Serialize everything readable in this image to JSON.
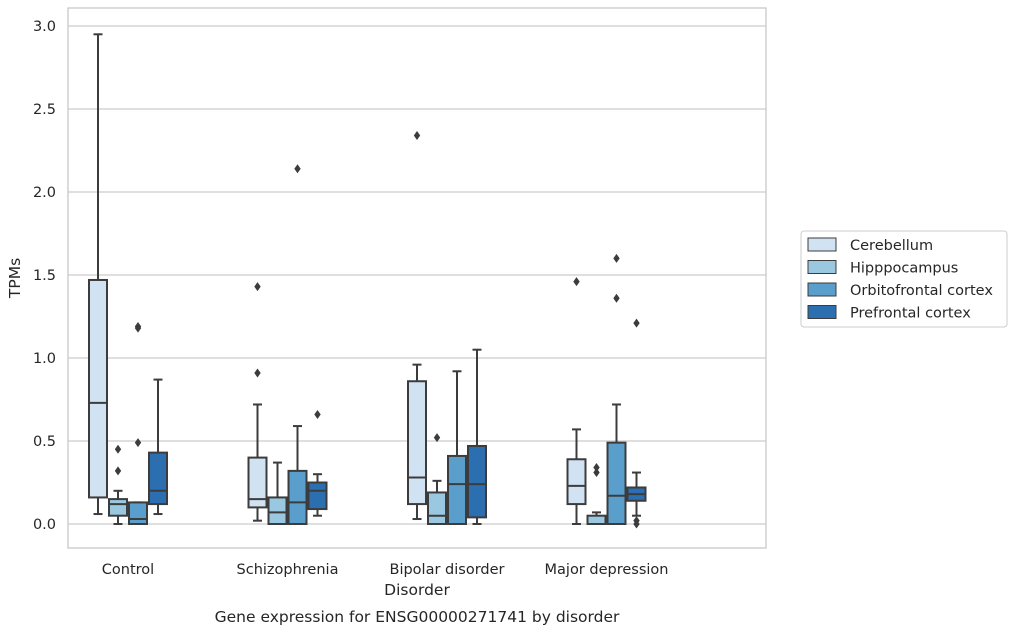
{
  "chart_data": {
    "type": "box",
    "caption": "Gene expression for ENSG00000271741 by disorder",
    "xlabel": "Disorder",
    "ylabel": "TPMs",
    "ylim": [
      -0.14,
      3.1
    ],
    "yticks": [
      0.0,
      0.5,
      1.0,
      1.5,
      2.0,
      2.5,
      3.0
    ],
    "ytick_labels": [
      "0.0",
      "0.5",
      "1.0",
      "1.5",
      "2.0",
      "2.5",
      "3.0"
    ],
    "grid": "horizontal",
    "legend_position": "right",
    "categories": [
      "Control",
      "Schizophrenia",
      "Bipolar disorder",
      "Major depression"
    ],
    "series": [
      {
        "name": "Cerebellum",
        "color": "#d1e2f2",
        "boxes": [
          {
            "whislo": 0.06,
            "q1": 0.16,
            "med": 0.73,
            "q3": 1.47,
            "whishi": 2.95,
            "fliers": []
          },
          {
            "whislo": 0.02,
            "q1": 0.1,
            "med": 0.15,
            "q3": 0.4,
            "whishi": 0.72,
            "fliers": [
              0.91,
              1.43
            ]
          },
          {
            "whislo": 0.03,
            "q1": 0.12,
            "med": 0.28,
            "q3": 0.86,
            "whishi": 0.96,
            "fliers": [
              2.34
            ]
          },
          {
            "whislo": 0.0,
            "q1": 0.12,
            "med": 0.23,
            "q3": 0.39,
            "whishi": 0.57,
            "fliers": [
              1.46
            ]
          }
        ]
      },
      {
        "name": "Hipppocampus",
        "color": "#9ac8e0",
        "boxes": [
          {
            "whislo": 0.0,
            "q1": 0.05,
            "med": 0.12,
            "q3": 0.15,
            "whishi": 0.2,
            "fliers": [
              0.32,
              0.45
            ]
          },
          {
            "whislo": 0.0,
            "q1": 0.0,
            "med": 0.07,
            "q3": 0.16,
            "whishi": 0.37,
            "fliers": []
          },
          {
            "whislo": 0.0,
            "q1": 0.0,
            "med": 0.05,
            "q3": 0.19,
            "whishi": 0.26,
            "fliers": [
              0.52
            ]
          },
          {
            "whislo": 0.0,
            "q1": 0.0,
            "med": 0.0,
            "q3": 0.05,
            "whishi": 0.07,
            "fliers": [
              0.31,
              0.34
            ]
          }
        ]
      },
      {
        "name": "Orbitofrontal cortex",
        "color": "#5a9ecc",
        "boxes": [
          {
            "whislo": 0.0,
            "q1": 0.0,
            "med": 0.03,
            "q3": 0.13,
            "whishi": 0.13,
            "fliers": [
              0.49,
              1.18,
              1.19
            ]
          },
          {
            "whislo": 0.0,
            "q1": 0.0,
            "med": 0.13,
            "q3": 0.32,
            "whishi": 0.59,
            "fliers": [
              2.14
            ]
          },
          {
            "whislo": 0.0,
            "q1": 0.0,
            "med": 0.24,
            "q3": 0.41,
            "whishi": 0.92,
            "fliers": []
          },
          {
            "whislo": 0.0,
            "q1": 0.0,
            "med": 0.17,
            "q3": 0.49,
            "whishi": 0.72,
            "fliers": [
              1.36,
              1.6
            ]
          }
        ]
      },
      {
        "name": "Prefrontal cortex",
        "color": "#2c6fb0",
        "boxes": [
          {
            "whislo": 0.06,
            "q1": 0.12,
            "med": 0.2,
            "q3": 0.43,
            "whishi": 0.87,
            "fliers": []
          },
          {
            "whislo": 0.05,
            "q1": 0.09,
            "med": 0.2,
            "q3": 0.25,
            "whishi": 0.3,
            "fliers": [
              0.66
            ]
          },
          {
            "whislo": 0.0,
            "q1": 0.04,
            "med": 0.24,
            "q3": 0.47,
            "whishi": 1.05,
            "fliers": []
          },
          {
            "whislo": 0.05,
            "q1": 0.14,
            "med": 0.18,
            "q3": 0.22,
            "whishi": 0.31,
            "fliers": [
              0.0,
              0.02,
              1.21
            ]
          }
        ]
      }
    ]
  }
}
